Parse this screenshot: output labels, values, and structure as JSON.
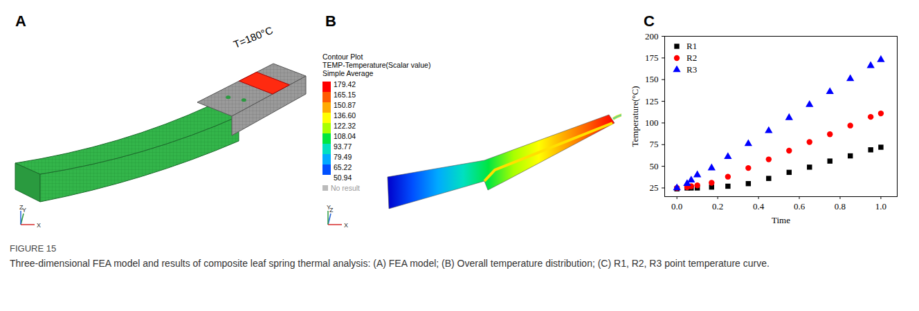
{
  "figure": {
    "caption_title": "FIGURE 15",
    "caption": "Three-dimensional FEA model and results of composite leaf spring thermal analysis: (A) FEA model; (B) Overall temperature distribution; (C) R1, R2, R3 point temperature curve.",
    "panels": {
      "A": {
        "letter": "A",
        "annotation": "T=180°C",
        "axes": [
          "Y",
          "Z",
          "X"
        ]
      },
      "B": {
        "letter": "B",
        "legend_title": [
          "Contour Plot",
          "TEMP-Temperature(Scalar value)",
          "Simple Average"
        ],
        "values": [
          179.42,
          165.15,
          150.87,
          136.6,
          122.32,
          108.04,
          93.77,
          79.49,
          65.22,
          50.94
        ],
        "value_labels": [
          "179.42",
          "165.15",
          "150.87",
          "136.60",
          "122.32",
          "108.04",
          "93.77",
          "79.49",
          "65.22",
          "50.94"
        ],
        "colors": [
          "#ff0000",
          "#ff5a00",
          "#ffaa00",
          "#ffff00",
          "#a8ff00",
          "#00e640",
          "#00e0c0",
          "#00aaff",
          "#0050ff",
          "#0000cc"
        ],
        "no_result": "No result",
        "axes": [
          "Z",
          "Y",
          "X"
        ]
      },
      "C": {
        "letter": "C"
      }
    }
  },
  "chart_data": {
    "type": "scatter",
    "x_label": "Time",
    "y_label": "Temperature(°C)",
    "x": [
      0,
      0.05,
      0.07,
      0.1,
      0.17,
      0.25,
      0.35,
      0.45,
      0.55,
      0.65,
      0.75,
      0.85,
      0.95,
      1.0
    ],
    "series": [
      {
        "name": "R1",
        "color": "#000000",
        "marker": "square",
        "values": [
          24,
          25,
          25,
          25,
          26,
          27,
          30,
          36,
          43,
          49,
          56,
          62,
          69,
          72
        ]
      },
      {
        "name": "R2",
        "color": "#ff0000",
        "marker": "circle",
        "values": [
          25,
          26,
          27,
          28,
          31,
          38,
          48,
          58,
          68,
          78,
          87,
          97,
          107,
          111
        ]
      },
      {
        "name": "R3",
        "color": "#0000ff",
        "marker": "triangle",
        "values": [
          25,
          30,
          34,
          40,
          48,
          61,
          76,
          91,
          106,
          121,
          136,
          151,
          166,
          173
        ]
      }
    ],
    "xlim": [
      -0.06,
      1.08
    ],
    "xticks": [
      {
        "value": 0,
        "label": "0.0"
      },
      {
        "value": 0.2,
        "label": "0.2"
      },
      {
        "value": 0.4,
        "label": "0.4"
      },
      {
        "value": 0.6,
        "label": "0.6"
      },
      {
        "value": 0.8,
        "label": "0.8"
      },
      {
        "value": 1.0,
        "label": "1.0"
      }
    ],
    "ylim": [
      15,
      200
    ],
    "yticks": [
      25,
      50,
      75,
      100,
      125,
      150,
      175,
      200
    ],
    "grid": false,
    "legend": "upper left"
  }
}
